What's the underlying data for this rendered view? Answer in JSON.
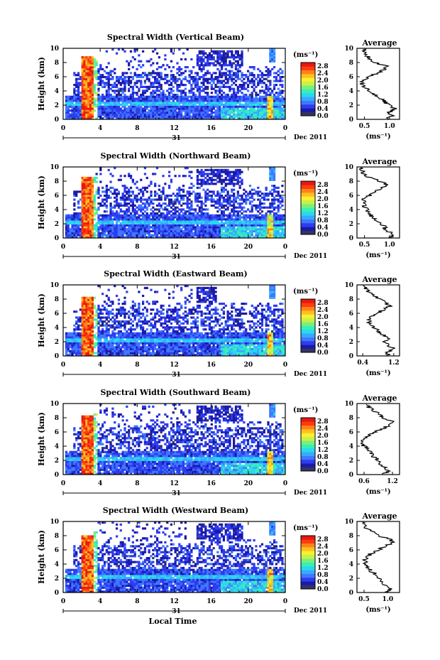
{
  "figure": {
    "xlabel": "Local Time",
    "ylabel": "Height (km)",
    "date_label": "Dec 2011",
    "day_label": "31",
    "unit_label": "(ms⁻¹)",
    "avg_title": "Average",
    "avg_xlabel": "(ms⁻¹)",
    "colorscale": [
      "#34345e",
      "#1a1aa8",
      "#2e3cf0",
      "#3f78ff",
      "#37aaff",
      "#2ad8f0",
      "#38f0b4",
      "#7af07a",
      "#c8f04a",
      "#f8f030",
      "#ffc020",
      "#ff8418",
      "#ff3c10",
      "#e81810"
    ]
  },
  "chart_data": [
    {
      "type": "heatmap",
      "title": "Spectral Width (Vertical Beam)",
      "xlabel": "Local Time",
      "ylabel": "Height (km)",
      "x_ticks": [
        "0",
        "4",
        "8",
        "12",
        "16",
        "20",
        "0"
      ],
      "y_ticks": [
        "0",
        "2",
        "4",
        "6",
        "8",
        "10"
      ],
      "xlim": [
        0,
        24
      ],
      "ylim": [
        0,
        10
      ],
      "colorbar": {
        "label": "(ms⁻¹)",
        "ticks": [
          "0.0",
          "0.4",
          "0.8",
          "1.2",
          "1.6",
          "2.0",
          "2.4",
          "2.8"
        ],
        "range": [
          0,
          3.0
        ]
      },
      "average_profile": {
        "title": "Average",
        "xlabel": "(ms⁻¹)",
        "x_ticks": [
          "0.5",
          "1.0"
        ],
        "xlim": [
          0.35,
          1.2
        ],
        "ylim": [
          0,
          10
        ],
        "height": [
          0,
          0.5,
          1,
          1.5,
          2,
          2.5,
          3,
          3.5,
          4,
          4.5,
          5,
          5.5,
          6,
          6.5,
          7,
          7.5,
          8,
          8.5,
          9,
          9.5
        ],
        "value": [
          0.95,
          1.05,
          1.0,
          1.1,
          0.98,
          0.9,
          0.8,
          0.7,
          0.6,
          0.5,
          0.45,
          0.48,
          0.6,
          0.75,
          0.9,
          0.95,
          0.7,
          0.6,
          0.55,
          0.5
        ]
      }
    },
    {
      "type": "heatmap",
      "title": "Spectral Width (Northward Beam)",
      "xlabel": "Local Time",
      "ylabel": "Height (km)",
      "x_ticks": [
        "0",
        "4",
        "8",
        "12",
        "16",
        "20",
        "0"
      ],
      "y_ticks": [
        "0",
        "2",
        "4",
        "6",
        "8",
        "10"
      ],
      "xlim": [
        0,
        24
      ],
      "ylim": [
        0,
        10
      ],
      "colorbar": {
        "label": "(ms⁻¹)",
        "ticks": [
          "0.0",
          "0.4",
          "0.8",
          "1.2",
          "1.6",
          "2.0",
          "2.4",
          "2.8"
        ],
        "range": [
          0,
          3.0
        ]
      },
      "average_profile": {
        "title": "Average",
        "xlabel": "(ms⁻¹)",
        "x_ticks": [
          "0.5",
          "1.0"
        ],
        "xlim": [
          0.35,
          1.2
        ],
        "ylim": [
          0,
          10
        ],
        "height": [
          0,
          0.5,
          1,
          1.5,
          2,
          2.5,
          3,
          3.5,
          4,
          4.5,
          5,
          5.5,
          6,
          6.5,
          7,
          7.5,
          8,
          8.5,
          9,
          9.5
        ],
        "value": [
          1.0,
          1.1,
          0.95,
          0.9,
          0.85,
          0.75,
          0.65,
          0.6,
          0.55,
          0.5,
          0.48,
          0.5,
          0.6,
          0.72,
          0.85,
          0.95,
          0.8,
          0.6,
          0.5,
          0.45
        ]
      }
    },
    {
      "type": "heatmap",
      "title": "Spectral Width (Eastward Beam)",
      "xlabel": "Local Time",
      "ylabel": "Height (km)",
      "x_ticks": [
        "0",
        "4",
        "8",
        "12",
        "16",
        "20",
        "0"
      ],
      "y_ticks": [
        "0",
        "2",
        "4",
        "6",
        "8",
        "10"
      ],
      "xlim": [
        0,
        24
      ],
      "ylim": [
        0,
        10
      ],
      "colorbar": {
        "label": "(ms⁻¹)",
        "ticks": [
          "0.0",
          "0.4",
          "0.8",
          "1.2",
          "1.6",
          "2.0",
          "2.4",
          "2.8"
        ],
        "range": [
          0,
          3.0
        ]
      },
      "average_profile": {
        "title": "Average",
        "xlabel": "(ms⁻¹)",
        "x_ticks": [
          "0.4",
          "1.2"
        ],
        "xlim": [
          0.25,
          1.35
        ],
        "ylim": [
          0,
          10
        ],
        "height": [
          0,
          0.5,
          1,
          1.5,
          2,
          2.5,
          3,
          3.5,
          4,
          4.5,
          5,
          5.5,
          6,
          6.5,
          7,
          7.5,
          8,
          8.5,
          9,
          9.5
        ],
        "value": [
          1.1,
          1.0,
          1.2,
          1.05,
          0.95,
          1.1,
          0.9,
          0.8,
          0.7,
          0.6,
          0.55,
          0.6,
          0.75,
          0.95,
          1.1,
          1.0,
          0.85,
          0.7,
          0.55,
          0.45
        ]
      }
    },
    {
      "type": "heatmap",
      "title": "Spectral Width (Southward Beam)",
      "xlabel": "Local Time",
      "ylabel": "Height (km)",
      "x_ticks": [
        "0",
        "4",
        "8",
        "12",
        "16",
        "20",
        "0"
      ],
      "y_ticks": [
        "0",
        "2",
        "4",
        "6",
        "8",
        "10"
      ],
      "xlim": [
        0,
        24
      ],
      "ylim": [
        0,
        10
      ],
      "colorbar": {
        "label": "(ms⁻¹)",
        "ticks": [
          "0.0",
          "0.4",
          "0.8",
          "1.2",
          "1.6",
          "2.0",
          "2.4",
          "2.8"
        ],
        "range": [
          0,
          3.0
        ]
      },
      "average_profile": {
        "title": "Average",
        "xlabel": "(ms⁻¹)",
        "x_ticks": [
          "0.6",
          "1.2"
        ],
        "xlim": [
          0.45,
          1.35
        ],
        "ylim": [
          0,
          10
        ],
        "height": [
          0,
          0.5,
          1,
          1.5,
          2,
          2.5,
          3,
          3.5,
          4,
          4.5,
          5,
          5.5,
          6,
          6.5,
          7,
          7.5,
          8,
          8.5,
          9,
          9.5
        ],
        "value": [
          1.0,
          1.1,
          1.05,
          0.95,
          0.9,
          0.8,
          0.75,
          0.7,
          0.6,
          0.55,
          0.6,
          0.7,
          0.85,
          1.0,
          1.15,
          1.2,
          1.0,
          0.95,
          0.8,
          0.7
        ]
      }
    },
    {
      "type": "heatmap",
      "title": "Spectral Width (Westward Beam)",
      "xlabel": "Local Time",
      "ylabel": "Height (km)",
      "x_ticks": [
        "0",
        "4",
        "8",
        "12",
        "16",
        "20",
        "0"
      ],
      "y_ticks": [
        "0",
        "2",
        "4",
        "6",
        "8",
        "10"
      ],
      "xlim": [
        0,
        24
      ],
      "ylim": [
        0,
        10
      ],
      "colorbar": {
        "label": "(ms⁻¹)",
        "ticks": [
          "0.0",
          "0.4",
          "0.8",
          "1.2",
          "1.6",
          "2.0",
          "2.4",
          "2.8"
        ],
        "range": [
          0,
          3.0
        ]
      },
      "average_profile": {
        "title": "Average",
        "xlabel": "(ms⁻¹)",
        "x_ticks": [
          "0.5",
          "1.0"
        ],
        "xlim": [
          0.35,
          1.25
        ],
        "ylim": [
          0,
          10
        ],
        "height": [
          0,
          0.5,
          1,
          1.5,
          2,
          2.5,
          3,
          3.5,
          4,
          4.5,
          5,
          5.5,
          6,
          6.5,
          7,
          7.5,
          8,
          8.5,
          9,
          9.5
        ],
        "value": [
          1.0,
          1.05,
          0.95,
          0.9,
          0.8,
          0.75,
          0.65,
          0.6,
          0.55,
          0.5,
          0.55,
          0.65,
          0.8,
          0.95,
          1.1,
          1.05,
          0.8,
          0.7,
          0.55,
          0.5
        ]
      }
    }
  ]
}
